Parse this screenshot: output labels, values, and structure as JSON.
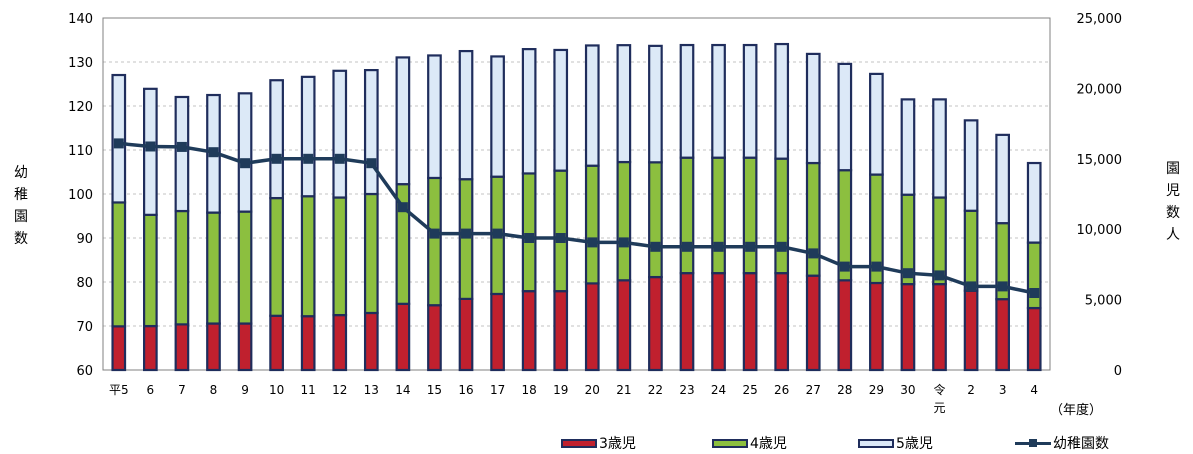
{
  "chart_data": {
    "type": "bar",
    "stacked": true,
    "categories": [
      "平5",
      "6",
      "7",
      "8",
      "9",
      "10",
      "11",
      "12",
      "13",
      "14",
      "15",
      "16",
      "17",
      "18",
      "19",
      "20",
      "21",
      "22",
      "23",
      "24",
      "25",
      "26",
      "27",
      "28",
      "29",
      "30",
      "令元",
      "2",
      "3",
      "4"
    ],
    "xlabel": "（年度）",
    "ylabel_left": "幼稚園数",
    "ylabel_right": "園児数 人",
    "ylim_left": [
      60,
      140
    ],
    "yticks_left": [
      "60",
      "70",
      "80",
      "90",
      "100",
      "110",
      "120",
      "130",
      "140"
    ],
    "ylim_right": [
      0,
      25000
    ],
    "yticks_right": [
      "0",
      "5,000",
      "10,000",
      "15,000",
      "20,000",
      "25,000"
    ],
    "grid": true,
    "legend_position": "bottom-right",
    "series": [
      {
        "name": "3歳児",
        "axis": "right",
        "color": "#c0202e",
        "values": [
          3100,
          3120,
          3240,
          3300,
          3300,
          3850,
          3820,
          3900,
          4050,
          4700,
          4600,
          5050,
          5400,
          5600,
          5600,
          6150,
          6370,
          6600,
          6880,
          6880,
          6880,
          6880,
          6700,
          6370,
          6180,
          6100,
          6100,
          5630,
          5030,
          4400
        ]
      },
      {
        "name": "4歳児",
        "axis": "right",
        "color": "#8cbf3f",
        "values": [
          8800,
          7900,
          8050,
          7880,
          7950,
          8360,
          8520,
          8350,
          8450,
          8500,
          9040,
          8500,
          8330,
          8360,
          8560,
          8360,
          8400,
          8150,
          8200,
          8200,
          8200,
          8130,
          8000,
          7820,
          7700,
          6350,
          6150,
          5680,
          5400,
          4650
        ]
      },
      {
        "name": "5歳児",
        "axis": "right",
        "color": "#dce9f7",
        "values": [
          9050,
          8950,
          8100,
          8350,
          8400,
          8370,
          8480,
          9000,
          8800,
          9000,
          8700,
          9100,
          8540,
          8830,
          8570,
          8540,
          8300,
          8270,
          8000,
          8000,
          8000,
          8140,
          7750,
          7550,
          7150,
          6770,
          6970,
          6420,
          6270,
          5650
        ]
      },
      {
        "name": "幼稚園数",
        "axis": "left",
        "type": "line",
        "color": "#1f3b5a",
        "values": [
          111.5,
          110.8,
          110.7,
          109.5,
          107,
          108,
          108,
          108,
          107,
          97,
          91,
          91,
          91,
          90,
          90,
          89,
          89,
          88,
          88,
          88,
          88,
          88,
          86.5,
          83.5,
          83.5,
          82,
          81.5,
          79,
          79,
          77.5
        ]
      }
    ]
  }
}
